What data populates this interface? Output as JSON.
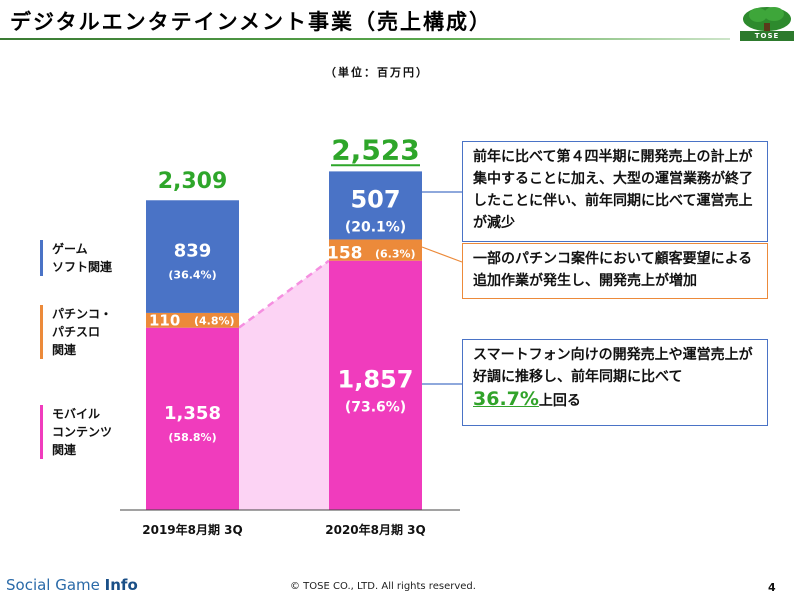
{
  "header": {
    "title": "デジタルエンタテインメント事業（売上構成）",
    "logo_text": "TOSE",
    "unit": "（単位：百万円）"
  },
  "legend": [
    {
      "lines": "ゲーム\nソフト関連",
      "color": "#4a73c6"
    },
    {
      "lines": "パチンコ・\nパチスロ\n関連",
      "color": "#ec8a3a"
    },
    {
      "lines": "モバイル\nコンテンツ\n関連",
      "color": "#f03cbd"
    }
  ],
  "chart_data": {
    "type": "bar",
    "stacked": true,
    "categories": [
      "2019年8月期 3Q",
      "2020年8月期 3Q"
    ],
    "series": [
      {
        "name": "モバイルコンテンツ関連",
        "color": "#f03cbd",
        "values": [
          1358,
          1857
        ],
        "labels": [
          "1,358",
          "1,857"
        ],
        "pct": [
          "(58.8%)",
          "(73.6%)"
        ]
      },
      {
        "name": "パチンコ・パチスロ関連",
        "color": "#ec8a3a",
        "values": [
          110,
          158
        ],
        "labels": [
          "110",
          "158"
        ],
        "pct": [
          "(4.8%)",
          "(6.3%)"
        ]
      },
      {
        "name": "ゲームソフト関連",
        "color": "#4a73c6",
        "values": [
          839,
          507
        ],
        "labels": [
          "839",
          "507"
        ],
        "pct": [
          "(36.4%)",
          "(20.1%)"
        ]
      }
    ],
    "totals": [
      2309,
      2523
    ],
    "total_labels": [
      "2,309",
      "2,523"
    ],
    "total_color": "#2ea62a",
    "connector_color": "#f58fe0"
  },
  "callouts": {
    "blue": "前年に比べて第４四半期に開発売上の計上が集中することに加え、大型の運営業務が終了したことに伴い、前年同期に比べて運営売上が減少",
    "orange": "一部のパチンコ案件において顧客要望による追加作業が発生し、開発売上が増加",
    "pink_text": "スマートフォン向けの開発売上や運営売上が好調に推移し、前年同期に比べて",
    "pink_highlight": "36.7%",
    "pink_suffix": "上回る"
  },
  "footer": {
    "brand_a": "Social Game ",
    "brand_b": "Info",
    "copyright": "© TOSE CO., LTD. All rights reserved.",
    "page": "4"
  }
}
